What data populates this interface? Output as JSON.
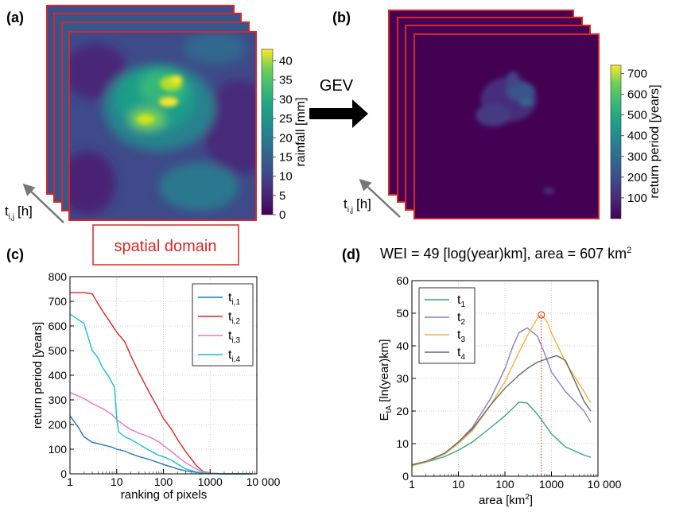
{
  "panels": {
    "a": {
      "label": "(a)",
      "colorbar_label": "rainfall [mm]",
      "colorbar_ticks": [
        "0",
        "5",
        "10",
        "15",
        "20",
        "25",
        "30",
        "35",
        "40"
      ],
      "time_axis_label": "t",
      "time_axis_sub": "i,j",
      "time_axis_unit": "[h]",
      "domain_box": "spatial domain"
    },
    "arrow_label": "GEV",
    "b": {
      "label": "(b)",
      "colorbar_label": "return period [years]",
      "colorbar_ticks": [
        "100",
        "200",
        "300",
        "400",
        "500",
        "600",
        "700"
      ],
      "time_axis_label": "t",
      "time_axis_sub": "i,j",
      "time_axis_unit": "[h]"
    },
    "c": {
      "label": "(c)"
    },
    "d": {
      "label": "(d)",
      "headline": "WEI = 49 [log(year)km], area = 607 km",
      "headline_sup": "2"
    }
  },
  "colors": {
    "frame_red": "#d62728",
    "viridis_dark": "#440154",
    "viridis_yellow": "#fde725"
  },
  "chart_data": [
    {
      "id": "c",
      "type": "line",
      "xscale": "log",
      "xlim": [
        1,
        10000
      ],
      "ylim": [
        0,
        800
      ],
      "xticks": [
        1,
        10,
        100,
        1000,
        10000
      ],
      "xtick_labels": [
        "1",
        "10",
        "100",
        "1000",
        "10 000"
      ],
      "yticks": [
        0,
        100,
        200,
        300,
        400,
        500,
        600,
        700,
        800
      ],
      "ytick_labels": [
        "0",
        "100",
        "200",
        "300",
        "400",
        "500",
        "600",
        "700",
        "800"
      ],
      "xlabel": "ranking of pixels",
      "ylabel": "return period [years]",
      "grid": true,
      "legend": "top-right",
      "series": [
        {
          "name": "t",
          "sub": "i,1",
          "color": "#1f77b4",
          "x": [
            1,
            1.5,
            2,
            3,
            5,
            8,
            10,
            15,
            20,
            30,
            50,
            80,
            100,
            150,
            200,
            300,
            500,
            700,
            1000,
            2000,
            5000,
            8000
          ],
          "y": [
            235,
            190,
            150,
            128,
            118,
            108,
            100,
            92,
            82,
            70,
            58,
            45,
            38,
            28,
            20,
            12,
            6,
            3,
            1,
            0,
            0,
            0
          ]
        },
        {
          "name": "t",
          "sub": "i,2",
          "color": "#d62728",
          "x": [
            1,
            2,
            3,
            4,
            5,
            7,
            10,
            15,
            20,
            30,
            50,
            80,
            100,
            150,
            200,
            300,
            500,
            700,
            1000,
            2000,
            5000,
            8000
          ],
          "y": [
            735,
            735,
            730,
            690,
            660,
            620,
            575,
            535,
            480,
            410,
            330,
            260,
            225,
            180,
            140,
            90,
            35,
            10,
            3,
            0,
            0,
            0
          ]
        },
        {
          "name": "t",
          "sub": "i,3",
          "color": "#e377c2",
          "x": [
            1,
            2,
            3,
            5,
            8,
            10,
            15,
            20,
            30,
            50,
            80,
            100,
            150,
            200,
            300,
            500,
            700,
            1000,
            2000,
            5000,
            8000
          ],
          "y": [
            330,
            305,
            285,
            265,
            240,
            220,
            195,
            180,
            165,
            150,
            130,
            115,
            90,
            70,
            45,
            20,
            8,
            3,
            0,
            0,
            0
          ]
        },
        {
          "name": "t",
          "sub": "i,4",
          "color": "#17becf",
          "x": [
            1,
            2,
            3,
            4,
            5,
            7,
            9,
            10,
            11,
            15,
            20,
            30,
            50,
            80,
            100,
            150,
            200,
            300,
            500,
            700,
            1000,
            2000,
            5000,
            8000
          ],
          "y": [
            648,
            610,
            500,
            470,
            430,
            390,
            350,
            225,
            170,
            150,
            140,
            120,
            95,
            75,
            70,
            55,
            40,
            20,
            8,
            3,
            1,
            0,
            0,
            0
          ]
        }
      ]
    },
    {
      "id": "d",
      "type": "line",
      "xscale": "log",
      "xlim": [
        1,
        10000
      ],
      "ylim": [
        0,
        60
      ],
      "xticks": [
        1,
        10,
        100,
        1000,
        10000
      ],
      "xtick_labels": [
        "1",
        "10",
        "100",
        "1000",
        "10 000"
      ],
      "yticks": [
        0,
        10,
        20,
        30,
        40,
        50,
        60
      ],
      "ytick_labels": [
        "0",
        "10",
        "20",
        "30",
        "40",
        "50",
        "60"
      ],
      "xlabel": "area [km",
      "xlabel_sup": "2",
      "xlabel_end": "]",
      "ylabel": "E",
      "ylabel_sub": "tA",
      "ylabel_end": " [ln(year)km]",
      "grid": true,
      "legend": "top-left",
      "marker": {
        "x": 607,
        "y": 49.5
      },
      "series": [
        {
          "name": "t",
          "sub": "1",
          "color": "#3aa381",
          "x": [
            1,
            2,
            5,
            10,
            20,
            50,
            100,
            200,
            300,
            500,
            1000,
            2000,
            5000,
            7000
          ],
          "y": [
            3.5,
            4.3,
            6,
            8,
            10.5,
            15,
            18.5,
            22.7,
            22.5,
            19,
            13,
            9,
            6.5,
            5.8
          ]
        },
        {
          "name": "t",
          "sub": "2",
          "color": "#8c7ec1",
          "x": [
            1,
            2,
            5,
            10,
            20,
            50,
            100,
            150,
            200,
            300,
            500,
            700,
            1000,
            2000,
            5000,
            7000
          ],
          "y": [
            3.5,
            4.5,
            7,
            10.5,
            15,
            24,
            33,
            40,
            44,
            45.5,
            43,
            38,
            32,
            26,
            20,
            16.5
          ]
        },
        {
          "name": "t",
          "sub": "3",
          "color": "#f2b33d",
          "x": [
            1,
            2,
            5,
            10,
            20,
            50,
            100,
            200,
            300,
            500,
            607,
            800,
            1000,
            2000,
            5000,
            7000
          ],
          "y": [
            3.2,
            4.3,
            6.8,
            10,
            14,
            22,
            29,
            38,
            43,
            48.5,
            49.5,
            47.5,
            44,
            35,
            26,
            22.5
          ]
        },
        {
          "name": "t",
          "sub": "4",
          "color": "#666666",
          "x": [
            1,
            2,
            5,
            10,
            20,
            50,
            100,
            200,
            300,
            500,
            1000,
            1300,
            2000,
            3000,
            5000,
            7000
          ],
          "y": [
            3.5,
            4.5,
            7,
            10.5,
            14.5,
            22,
            27,
            31,
            33,
            35,
            36.5,
            37,
            35.5,
            30,
            23,
            20
          ]
        }
      ]
    }
  ]
}
